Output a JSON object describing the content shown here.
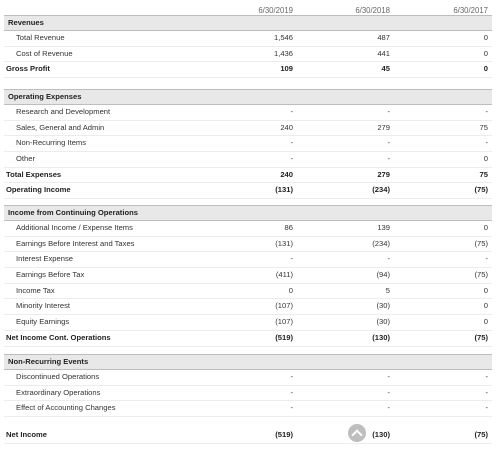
{
  "columns": [
    "6/30/2019",
    "6/30/2018",
    "6/30/2017"
  ],
  "sections": [
    {
      "title": "Revenues",
      "rows": [
        {
          "label": "Total Revenue",
          "values": [
            "1,546",
            "487",
            "0"
          ]
        },
        {
          "label": "Cost of Revenue",
          "values": [
            "1,436",
            "441",
            "0"
          ]
        },
        {
          "label": "Gross Profit",
          "values": [
            "109",
            "45",
            "0"
          ],
          "total": true
        }
      ]
    },
    {
      "title": "Operating Expenses",
      "rows": [
        {
          "label": "Research and Development",
          "values": [
            "-",
            "-",
            "-"
          ]
        },
        {
          "label": "Sales, General and Admin",
          "values": [
            "240",
            "279",
            "75"
          ]
        },
        {
          "label": "Non-Recurring Items",
          "values": [
            "-",
            "-",
            "-"
          ]
        },
        {
          "label": "Other",
          "values": [
            "-",
            "-",
            "0"
          ]
        },
        {
          "label": "Total Expenses",
          "values": [
            "240",
            "279",
            "75"
          ],
          "total": true
        },
        {
          "label": "Operating Income",
          "values": [
            "(131)",
            "(234)",
            "(75)"
          ],
          "total": true
        }
      ]
    },
    {
      "title": "Income from Continuing Operations",
      "rows": [
        {
          "label": "Additional Income / Expense Items",
          "values": [
            "86",
            "139",
            "0"
          ]
        },
        {
          "label": "Earnings Before Interest and Taxes",
          "values": [
            "(131)",
            "(234)",
            "(75)"
          ]
        },
        {
          "label": "Interest Expense",
          "values": [
            "-",
            "-",
            "-"
          ]
        },
        {
          "label": "Earnings Before Tax",
          "values": [
            "(411)",
            "(94)",
            "(75)"
          ]
        },
        {
          "label": "Income Tax",
          "values": [
            "0",
            "5",
            "0"
          ]
        },
        {
          "label": "Minority Interest",
          "values": [
            "(107)",
            "(30)",
            "0"
          ]
        },
        {
          "label": "Equity Earnings",
          "values": [
            "(107)",
            "(30)",
            "0"
          ]
        },
        {
          "label": "Net Income Cont. Operations",
          "values": [
            "(519)",
            "(130)",
            "(75)"
          ],
          "total": true
        }
      ]
    },
    {
      "title": "Non-Recurring Events",
      "rows": [
        {
          "label": "Discontinued Operations",
          "values": [
            "-",
            "-",
            "-"
          ]
        },
        {
          "label": "Extraordinary Operations",
          "values": [
            "-",
            "-",
            "-"
          ]
        },
        {
          "label": "Effect of Accounting Changes",
          "values": [
            "-",
            "-",
            "-"
          ]
        }
      ]
    },
    {
      "title": "",
      "rows": [
        {
          "label": "Net Income",
          "values": [
            "(519)",
            "(130)",
            "(75)"
          ],
          "total": true
        }
      ]
    }
  ],
  "icons": {
    "scroll_top": "chevron-up-icon"
  }
}
